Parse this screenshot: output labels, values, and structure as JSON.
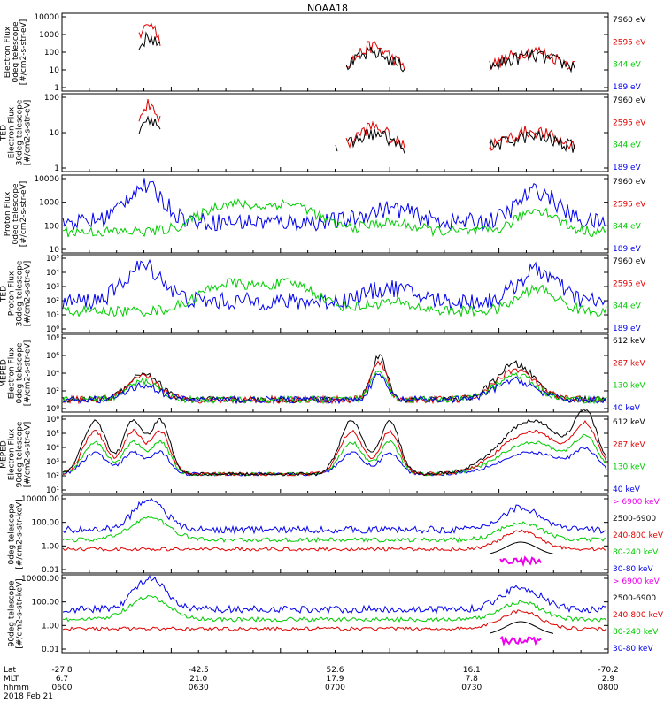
{
  "title": "NOAA18",
  "panels": [
    {
      "ylabel": [
        "Electron Flux",
        "0deg telescope",
        "[#/cm2-s-str-eV]"
      ],
      "ticks": [
        "10000",
        "1000",
        "100",
        "10",
        "1"
      ],
      "legend": [
        {
          "text": "7960 eV",
          "color": "#000000"
        },
        {
          "text": "2595 eV",
          "color": "#e00000"
        },
        {
          "text": "844 eV",
          "color": "#00cc00"
        },
        {
          "text": "189 eV",
          "color": "#0000ee"
        }
      ]
    },
    {
      "ylabel": [
        "TED",
        "Electron Flux",
        "30deg telescope",
        "[#/cm2-s-str-eV]"
      ],
      "ticks": [
        "100",
        "10",
        "1"
      ],
      "legend": [
        {
          "text": "7960 eV",
          "color": "#000000"
        },
        {
          "text": "2595 eV",
          "color": "#e00000"
        },
        {
          "text": "844 eV",
          "color": "#00cc00"
        },
        {
          "text": "189 eV",
          "color": "#0000ee"
        }
      ]
    },
    {
      "ylabel": [
        "Proton Flux",
        "0deg telescope",
        "[#/cm2-s-str-eV]"
      ],
      "ticks": [
        "10000",
        "1000",
        "100",
        "10"
      ],
      "legend": [
        {
          "text": "7960 eV",
          "color": "#000000"
        },
        {
          "text": "2595 eV",
          "color": "#e00000"
        },
        {
          "text": "844 eV",
          "color": "#00cc00"
        },
        {
          "text": "189 eV",
          "color": "#0000ee"
        }
      ]
    },
    {
      "ylabel": [
        "TED",
        "Proton Flux",
        "30deg telescope",
        "[#/cm2-s-str-eV]"
      ],
      "ticks": [
        "10⁵",
        "10⁴",
        "10³",
        "10²",
        "10¹",
        "10⁰"
      ],
      "legend": [
        {
          "text": "7960 eV",
          "color": "#000000"
        },
        {
          "text": "2595 eV",
          "color": "#e00000"
        },
        {
          "text": "844 eV",
          "color": "#00cc00"
        },
        {
          "text": "189 eV",
          "color": "#0000ee"
        }
      ]
    },
    {
      "ylabel": [
        "MEPED",
        "Electron Flux",
        "0deg telescope",
        "[#/cm2-s-str-eV]"
      ],
      "ticks": [
        "10⁸",
        "10⁶",
        "10⁴",
        "10²",
        "10⁰"
      ],
      "legend": [
        {
          "text": "612 keV",
          "color": "#000000"
        },
        {
          "text": "287 keV",
          "color": "#e00000"
        },
        {
          "text": "130 keV",
          "color": "#00cc00"
        },
        {
          "text": "40 keV",
          "color": "#0000ee"
        }
      ]
    },
    {
      "ylabel": [
        "MEPED",
        "Electron Flux",
        "90deg telescope",
        "[#/cm2-s-str-eV]"
      ],
      "ticks": [
        "10⁶",
        "10⁵",
        "10⁴",
        "10³",
        "10²",
        "10¹"
      ],
      "legend": [
        {
          "text": "612 keV",
          "color": "#000000"
        },
        {
          "text": "287 keV",
          "color": "#e00000"
        },
        {
          "text": "130 keV",
          "color": "#00cc00"
        },
        {
          "text": "40 keV",
          "color": "#0000ee"
        }
      ]
    },
    {
      "ylabel": [
        "0deg telescope",
        "[#/cm2-s-str-keV]"
      ],
      "ticks": [
        "10000.00",
        "100.00",
        "1.00",
        "0.01"
      ],
      "legend": [
        {
          "text": "> 6900 keV",
          "color": "#ee00ee"
        },
        {
          "text": "2500-6900",
          "color": "#000000"
        },
        {
          "text": "240-800 keV",
          "color": "#e00000"
        },
        {
          "text": "80-240 keV",
          "color": "#00cc00"
        },
        {
          "text": "30-80 keV",
          "color": "#0000ee"
        }
      ]
    },
    {
      "ylabel": [
        "90deg telescope",
        "[#/cm2-s-str-keV]"
      ],
      "ticks": [
        "10000.00",
        "100.00",
        "1.00",
        "0.01"
      ],
      "legend": [
        {
          "text": "> 6900 keV",
          "color": "#ee00ee"
        },
        {
          "text": "2500-6900",
          "color": "#000000"
        },
        {
          "text": "240-800 keV",
          "color": "#e00000"
        },
        {
          "text": "80-240 keV",
          "color": "#00cc00"
        },
        {
          "text": "30-80 keV",
          "color": "#0000ee"
        }
      ]
    }
  ],
  "xaxis": {
    "row_labels": [
      "Lat",
      "MLT",
      "hhmm",
      "2018 Feb 21"
    ],
    "columns": [
      {
        "lat": "-27.8",
        "mlt": "6.7",
        "hhmm": "0600"
      },
      {
        "lat": "-42.5",
        "mlt": "21.0",
        "hhmm": "0630"
      },
      {
        "lat": "52.6",
        "mlt": "17.9",
        "hhmm": "0700"
      },
      {
        "lat": "16.1",
        "mlt": "7.8",
        "hhmm": "0730"
      },
      {
        "lat": "-70.2",
        "mlt": "2.9",
        "hhmm": "0800"
      }
    ]
  },
  "chart_data": {
    "type": "line",
    "title": "NOAA18",
    "x_tick_labels": [
      "0600",
      "0630",
      "0700",
      "0730",
      "0800"
    ],
    "panels_summary": [
      {
        "panel": "TED Electron Flux 0deg",
        "series": [
          "7960 eV",
          "2595 eV",
          "844 eV",
          "189 eV"
        ],
        "peak_y": 5000
      },
      {
        "panel": "TED Electron Flux 30deg",
        "series": [
          "7960 eV",
          "2595 eV",
          "844 eV",
          "189 eV"
        ],
        "peak_y": 600
      },
      {
        "panel": "TED Proton Flux 0deg",
        "series": [
          "7960 eV",
          "2595 eV",
          "844 eV",
          "189 eV"
        ],
        "peak_y": 8000
      },
      {
        "panel": "TED Proton Flux 30deg",
        "series": [
          "7960 eV",
          "2595 eV",
          "844 eV",
          "189 eV"
        ],
        "peak_y": 10000
      },
      {
        "panel": "MEPED Electron Flux 0deg",
        "series": [
          "612 keV",
          "287 keV",
          "130 keV",
          "40 keV"
        ],
        "peak_y": 100000
      },
      {
        "panel": "MEPED Electron Flux 90deg",
        "series": [
          "612 keV",
          "287 keV",
          "130 keV",
          "40 keV"
        ],
        "peak_y": 800000
      },
      {
        "panel": "MEPED Proton 0deg",
        "series": [
          "> 6900 keV",
          "2500-6900",
          "240-800 keV",
          "80-240 keV",
          "30-80 keV"
        ],
        "peak_y": 10000
      },
      {
        "panel": "MEPED Proton 90deg",
        "series": [
          "> 6900 keV",
          "2500-6900",
          "240-800 keV",
          "80-240 keV",
          "30-80 keV"
        ],
        "peak_y": 5000
      }
    ]
  }
}
